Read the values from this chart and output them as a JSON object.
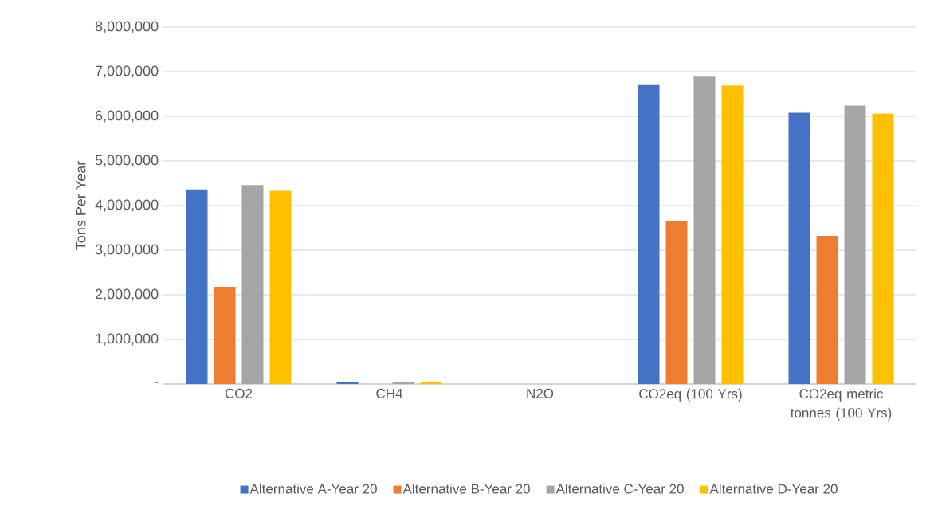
{
  "chart_data": {
    "type": "bar",
    "ylabel": "Tons Per Year",
    "categories": [
      "CO2",
      "CH4",
      "N2O",
      "CO2eq (100 Yrs)",
      "CO2eq metric tonnes (100 Yrs)"
    ],
    "series": [
      {
        "name": "Alternative A-Year 20",
        "color": "#4472c4",
        "values": [
          4360000,
          50000,
          0,
          6700000,
          6080000
        ]
      },
      {
        "name": "Alternative B-Year 20",
        "color": "#ed7d31",
        "values": [
          2180000,
          0,
          0,
          3660000,
          3320000
        ]
      },
      {
        "name": "Alternative C-Year 20",
        "color": "#a5a5a5",
        "values": [
          4460000,
          40000,
          0,
          6890000,
          6240000
        ]
      },
      {
        "name": "Alternative D-Year 20",
        "color": "#ffc000",
        "values": [
          4330000,
          40000,
          0,
          6690000,
          6060000
        ]
      }
    ],
    "ylim": [
      0,
      8000000
    ],
    "yticks": [
      {
        "value": 0,
        "label": "-"
      },
      {
        "value": 1000000,
        "label": "1,000,000"
      },
      {
        "value": 2000000,
        "label": "2,000,000"
      },
      {
        "value": 3000000,
        "label": "3,000,000"
      },
      {
        "value": 4000000,
        "label": "4,000,000"
      },
      {
        "value": 5000000,
        "label": "5,000,000"
      },
      {
        "value": 6000000,
        "label": "6,000,000"
      },
      {
        "value": 7000000,
        "label": "7,000,000"
      },
      {
        "value": 8000000,
        "label": "8,000,000"
      }
    ],
    "grid": "y",
    "legend": "bottom"
  }
}
